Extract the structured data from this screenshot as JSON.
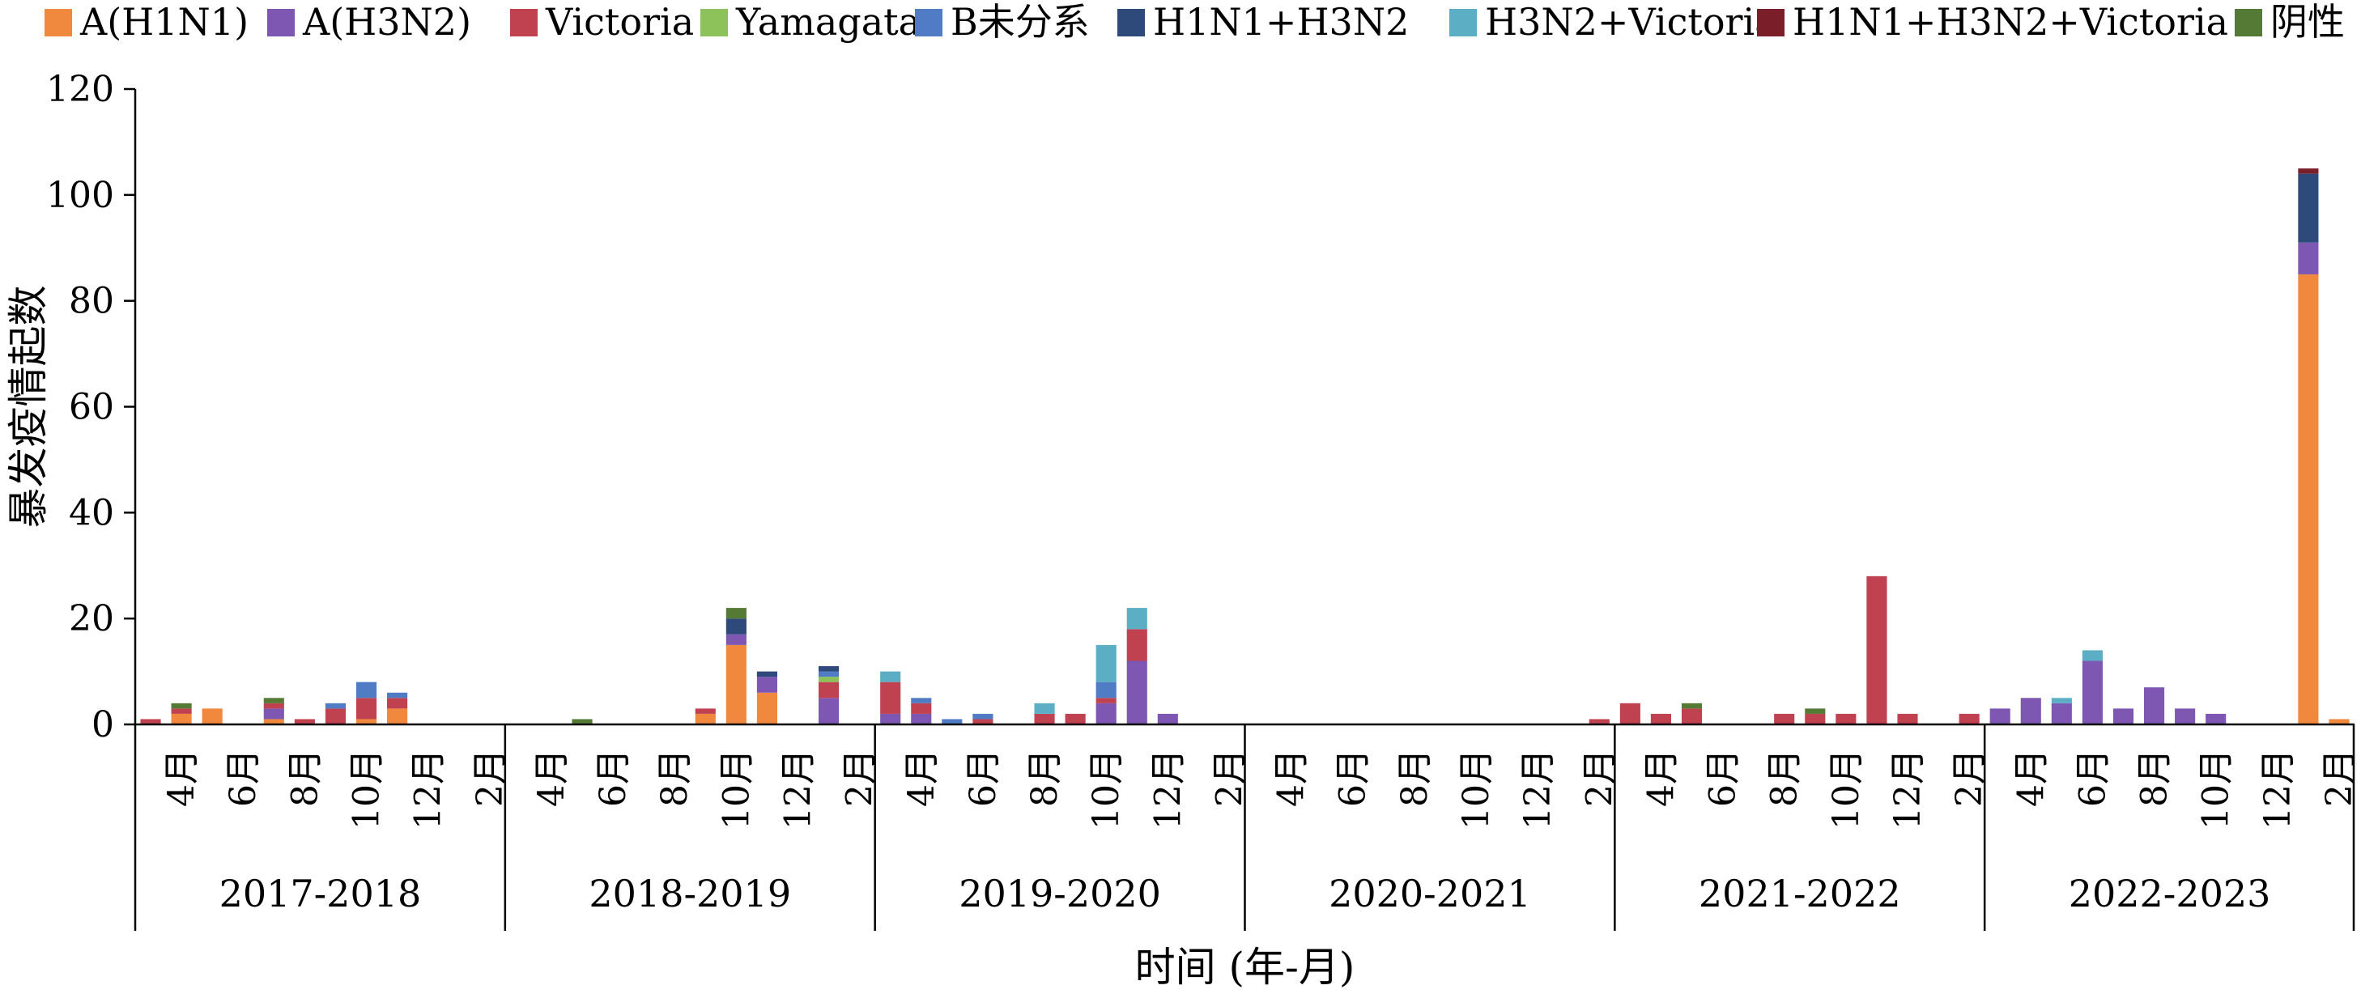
{
  "chart_data": {
    "type": "bar",
    "stacked": true,
    "ylabel": "暴发疫情起数",
    "xlabel": "时间 (年-月)",
    "ylim": [
      0,
      120
    ],
    "yticks": [
      0,
      20,
      40,
      60,
      80,
      100,
      120
    ],
    "legend_position": "top",
    "seasons": [
      "2017-2018",
      "2018-2019",
      "2019-2020",
      "2020-2021",
      "2021-2022",
      "2022-2023"
    ],
    "month_labels": [
      "4月",
      "6月",
      "8月",
      "10月",
      "12月",
      "2月"
    ],
    "months_per_season": 12,
    "series": [
      {
        "name": "A(H1N1)",
        "color": "#F0883E"
      },
      {
        "name": "A(H3N2)",
        "color": "#7E57B3"
      },
      {
        "name": "Victoria",
        "color": "#C0414F"
      },
      {
        "name": "Yamagata",
        "color": "#8DC15A"
      },
      {
        "name": "B未分系",
        "color": "#4F7CC4"
      },
      {
        "name": "H1N1+H3N2",
        "color": "#2E4A7A"
      },
      {
        "name": "H3N2+Victoria",
        "color": "#5BAEC4"
      },
      {
        "name": "H1N1+H3N2+Victoria",
        "color": "#7A1E2A"
      },
      {
        "name": "阴性",
        "color": "#557A35"
      }
    ],
    "columns": [
      {
        "season": "2017-2018",
        "month": 1,
        "values": [
          0,
          0,
          1,
          0,
          0,
          0,
          0,
          0,
          0
        ]
      },
      {
        "season": "2017-2018",
        "month": 2,
        "values": [
          2,
          0,
          1,
          0,
          0,
          0,
          0,
          0,
          1
        ]
      },
      {
        "season": "2017-2018",
        "month": 3,
        "values": [
          3,
          0,
          0,
          0,
          0,
          0,
          0,
          0,
          0
        ]
      },
      {
        "season": "2017-2018",
        "month": 5,
        "values": [
          1,
          2,
          1,
          0,
          0,
          0,
          0,
          0,
          1
        ]
      },
      {
        "season": "2017-2018",
        "month": 6,
        "values": [
          0,
          0,
          1,
          0,
          0,
          0,
          0,
          0,
          0
        ]
      },
      {
        "season": "2017-2018",
        "month": 7,
        "values": [
          0,
          0,
          3,
          0,
          1,
          0,
          0,
          0,
          0
        ]
      },
      {
        "season": "2017-2018",
        "month": 8,
        "values": [
          1,
          0,
          4,
          0,
          3,
          0,
          0,
          0,
          0
        ]
      },
      {
        "season": "2017-2018",
        "month": 9,
        "values": [
          3,
          0,
          2,
          0,
          1,
          0,
          0,
          0,
          0
        ]
      },
      {
        "season": "2018-2019",
        "month": 3,
        "values": [
          0,
          0,
          0,
          0,
          0,
          0,
          0,
          0,
          1
        ]
      },
      {
        "season": "2018-2019",
        "month": 7,
        "values": [
          2,
          0,
          1,
          0,
          0,
          0,
          0,
          0,
          0
        ]
      },
      {
        "season": "2018-2019",
        "month": 8,
        "values": [
          15,
          2,
          0,
          0,
          0,
          3,
          0,
          0,
          2
        ]
      },
      {
        "season": "2018-2019",
        "month": 9,
        "values": [
          6,
          3,
          0,
          0,
          0,
          1,
          0,
          0,
          0
        ]
      },
      {
        "season": "2018-2019",
        "month": 11,
        "values": [
          0,
          5,
          3,
          1,
          1,
          1,
          0,
          0,
          0
        ]
      },
      {
        "season": "2019-2020",
        "month": 1,
        "values": [
          0,
          2,
          6,
          0,
          0,
          0,
          2,
          0,
          0
        ]
      },
      {
        "season": "2019-2020",
        "month": 2,
        "values": [
          0,
          2,
          2,
          0,
          1,
          0,
          0,
          0,
          0
        ]
      },
      {
        "season": "2019-2020",
        "month": 3,
        "values": [
          0,
          0,
          0,
          0,
          1,
          0,
          0,
          0,
          0
        ]
      },
      {
        "season": "2019-2020",
        "month": 4,
        "values": [
          0,
          0,
          1,
          0,
          1,
          0,
          0,
          0,
          0
        ]
      },
      {
        "season": "2019-2020",
        "month": 6,
        "values": [
          0,
          0,
          2,
          0,
          0,
          0,
          2,
          0,
          0
        ]
      },
      {
        "season": "2019-2020",
        "month": 7,
        "values": [
          0,
          0,
          2,
          0,
          0,
          0,
          0,
          0,
          0
        ]
      },
      {
        "season": "2019-2020",
        "month": 8,
        "values": [
          0,
          4,
          1,
          0,
          3,
          0,
          7,
          0,
          0
        ]
      },
      {
        "season": "2019-2020",
        "month": 9,
        "values": [
          0,
          12,
          6,
          0,
          0,
          0,
          4,
          0,
          0
        ]
      },
      {
        "season": "2019-2020",
        "month": 10,
        "values": [
          0,
          2,
          0,
          0,
          0,
          0,
          0,
          0,
          0
        ]
      },
      {
        "season": "2020-2021",
        "month": 12,
        "values": [
          0,
          0,
          1,
          0,
          0,
          0,
          0,
          0,
          0
        ]
      },
      {
        "season": "2021-2022",
        "month": 1,
        "values": [
          0,
          0,
          4,
          0,
          0,
          0,
          0,
          0,
          0
        ]
      },
      {
        "season": "2021-2022",
        "month": 2,
        "values": [
          0,
          0,
          2,
          0,
          0,
          0,
          0,
          0,
          0
        ]
      },
      {
        "season": "2021-2022",
        "month": 3,
        "values": [
          0,
          0,
          3,
          0,
          0,
          0,
          0,
          0,
          1
        ]
      },
      {
        "season": "2021-2022",
        "month": 6,
        "values": [
          0,
          0,
          2,
          0,
          0,
          0,
          0,
          0,
          0
        ]
      },
      {
        "season": "2021-2022",
        "month": 7,
        "values": [
          0,
          0,
          2,
          0,
          0,
          0,
          0,
          0,
          1
        ]
      },
      {
        "season": "2021-2022",
        "month": 8,
        "values": [
          0,
          0,
          2,
          0,
          0,
          0,
          0,
          0,
          0
        ]
      },
      {
        "season": "2021-2022",
        "month": 9,
        "values": [
          0,
          0,
          28,
          0,
          0,
          0,
          0,
          0,
          0
        ]
      },
      {
        "season": "2021-2022",
        "month": 10,
        "values": [
          0,
          0,
          2,
          0,
          0,
          0,
          0,
          0,
          0
        ]
      },
      {
        "season": "2021-2022",
        "month": 12,
        "values": [
          0,
          0,
          2,
          0,
          0,
          0,
          0,
          0,
          0
        ]
      },
      {
        "season": "2022-2023",
        "month": 1,
        "values": [
          0,
          3,
          0,
          0,
          0,
          0,
          0,
          0,
          0
        ]
      },
      {
        "season": "2022-2023",
        "month": 2,
        "values": [
          0,
          5,
          0,
          0,
          0,
          0,
          0,
          0,
          0
        ]
      },
      {
        "season": "2022-2023",
        "month": 3,
        "values": [
          0,
          4,
          0,
          0,
          0,
          0,
          1,
          0,
          0
        ]
      },
      {
        "season": "2022-2023",
        "month": 4,
        "values": [
          0,
          12,
          0,
          0,
          0,
          0,
          2,
          0,
          0
        ]
      },
      {
        "season": "2022-2023",
        "month": 5,
        "values": [
          0,
          3,
          0,
          0,
          0,
          0,
          0,
          0,
          0
        ]
      },
      {
        "season": "2022-2023",
        "month": 6,
        "values": [
          0,
          7,
          0,
          0,
          0,
          0,
          0,
          0,
          0
        ]
      },
      {
        "season": "2022-2023",
        "month": 7,
        "values": [
          0,
          3,
          0,
          0,
          0,
          0,
          0,
          0,
          0
        ]
      },
      {
        "season": "2022-2023",
        "month": 8,
        "values": [
          0,
          2,
          0,
          0,
          0,
          0,
          0,
          0,
          0
        ]
      },
      {
        "season": "2022-2023",
        "month": 11,
        "values": [
          85,
          6,
          0,
          0,
          0,
          13,
          0,
          1,
          0
        ]
      },
      {
        "season": "2022-2023",
        "month": 12,
        "values": [
          1,
          0,
          0,
          0,
          0,
          0,
          0,
          0,
          0
        ]
      }
    ]
  }
}
